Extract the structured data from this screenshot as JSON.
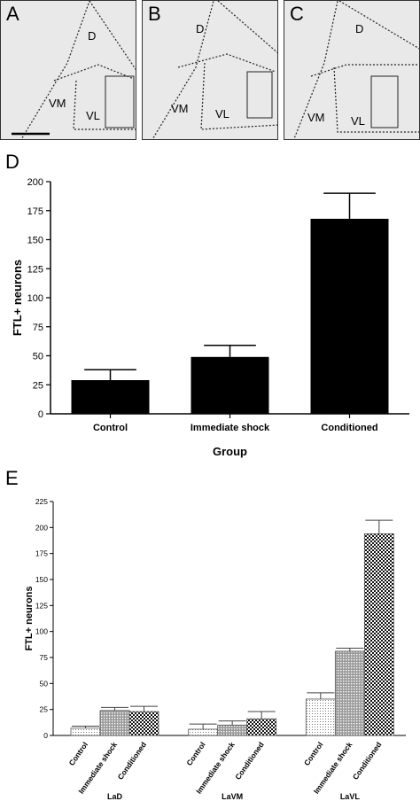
{
  "micrographs": [
    {
      "letter": "A",
      "regions": [
        "D",
        "VM",
        "VL"
      ]
    },
    {
      "letter": "B",
      "regions": [
        "D",
        "VM",
        "VL"
      ]
    },
    {
      "letter": "C",
      "regions": [
        "D",
        "VM",
        "VL"
      ]
    }
  ],
  "panel_D": {
    "letter": "D"
  },
  "panel_E": {
    "letter": "E"
  },
  "chart_data": [
    {
      "type": "bar",
      "categories": [
        "Control",
        "Immediate shock",
        "Conditioned"
      ],
      "values": [
        29,
        49,
        168
      ],
      "errors": [
        9,
        10,
        22
      ],
      "xlabel": "Group",
      "ylabel": "FTL+ neurons",
      "ylim": [
        0,
        200
      ],
      "yticks": [
        0,
        25,
        50,
        75,
        100,
        125,
        150,
        175,
        200
      ],
      "bar_color": "#000000"
    },
    {
      "type": "bar",
      "groups": [
        "LaD",
        "LaVM",
        "LaVL"
      ],
      "categories": [
        "Control",
        "Immediate shock",
        "Conditioned"
      ],
      "series": [
        {
          "values": [
            7,
            24,
            23
          ],
          "errors": [
            2,
            3,
            5
          ]
        },
        {
          "values": [
            6,
            10,
            16
          ],
          "errors": [
            5,
            4,
            7
          ]
        },
        {
          "values": [
            35,
            81,
            194
          ],
          "errors": [
            6,
            3,
            13
          ]
        }
      ],
      "ylabel": "FTL+ neurons",
      "ylim": [
        0,
        225
      ],
      "yticks": [
        0,
        25,
        50,
        75,
        100,
        125,
        150,
        175,
        200,
        225
      ],
      "fills": [
        "dots",
        "grid",
        "checker"
      ]
    }
  ]
}
